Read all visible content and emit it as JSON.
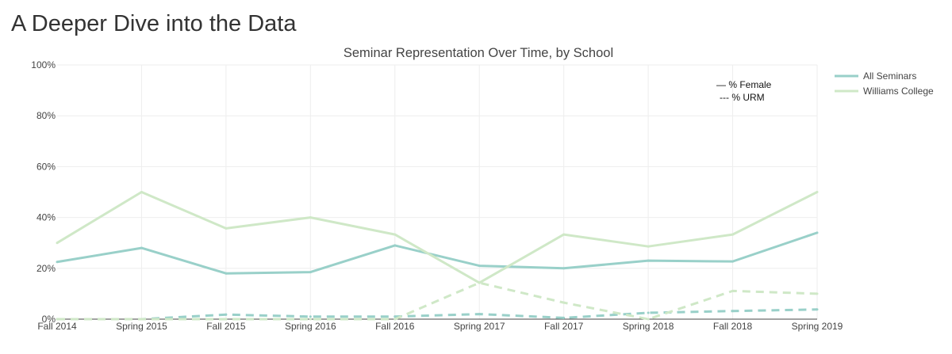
{
  "page": {
    "heading": "A Deeper Dive into the Data"
  },
  "chart_data": {
    "type": "line",
    "title": "Seminar Representation Over Time, by School",
    "categories": [
      "Fall 2014",
      "Spring 2015",
      "Fall 2015",
      "Spring 2016",
      "Fall 2016",
      "Spring 2017",
      "Fall 2017",
      "Spring 2018",
      "Fall 2018",
      "Spring 2019"
    ],
    "yticks": [
      "0%",
      "20%",
      "40%",
      "60%",
      "80%",
      "100%"
    ],
    "ylim": [
      0,
      100
    ],
    "grid": true,
    "legend_position": "top-right",
    "line_style_legend": [
      {
        "label": "% Female",
        "dash": "solid"
      },
      {
        "label": "% URM",
        "dash": "dash"
      }
    ],
    "series": [
      {
        "name": "All Seminars",
        "metric": "% Female",
        "dash": "solid",
        "color": "#99d0c9",
        "values": [
          22.5,
          28,
          18,
          18.5,
          29,
          21,
          20,
          23,
          22.7,
          34
        ]
      },
      {
        "name": "All Seminars",
        "metric": "% URM",
        "dash": "dash",
        "color": "#99d0c9",
        "values": [
          0,
          0,
          1.8,
          1,
          1,
          2,
          0.5,
          2.5,
          3.2,
          3.8
        ]
      },
      {
        "name": "Williams College",
        "metric": "% Female",
        "dash": "solid",
        "color": "#cfe8c7",
        "values": [
          30,
          50,
          35.7,
          40,
          33.3,
          14.3,
          33.3,
          28.6,
          33.3,
          50
        ]
      },
      {
        "name": "Williams College",
        "metric": "% URM",
        "dash": "dash",
        "color": "#cfe8c7",
        "values": [
          0,
          0,
          0,
          0,
          0,
          14.3,
          6.5,
          0,
          11.1,
          10
        ]
      }
    ],
    "legend": [
      {
        "name": "All Seminars",
        "color": "#99d0c9"
      },
      {
        "name": "Williams College",
        "color": "#cfe8c7"
      }
    ]
  }
}
